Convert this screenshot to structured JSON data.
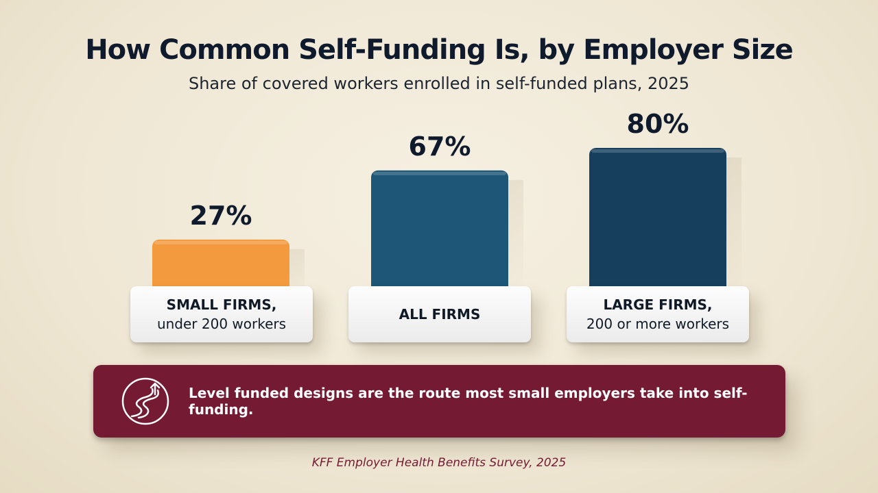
{
  "chart_data": {
    "type": "bar",
    "title": "How Common Self-Funding Is, by Employer Size",
    "subtitle": "Share of covered workers enrolled in self-funded plans, 2025",
    "categories": [
      {
        "line1": "SMALL FIRMS,",
        "line2": "under 200 workers"
      },
      {
        "line1": "ALL FIRMS",
        "line2": ""
      },
      {
        "line1": "LARGE FIRMS,",
        "line2": "200 or more workers"
      }
    ],
    "values": [
      27,
      67,
      80
    ],
    "value_labels": [
      "27%",
      "67%",
      "80%"
    ],
    "unit": "%",
    "colors": [
      "#f39a3e",
      "#1d5677",
      "#163f5d"
    ],
    "ylim": [
      0,
      100
    ],
    "grid": false,
    "legend": "none"
  },
  "callout": {
    "icon": "winding-road-arrow-icon",
    "text": "Level funded designs are the route most small employers take into self-funding.",
    "color": "#741a33"
  },
  "source": "KFF Employer Health Benefits Survey, 2025"
}
